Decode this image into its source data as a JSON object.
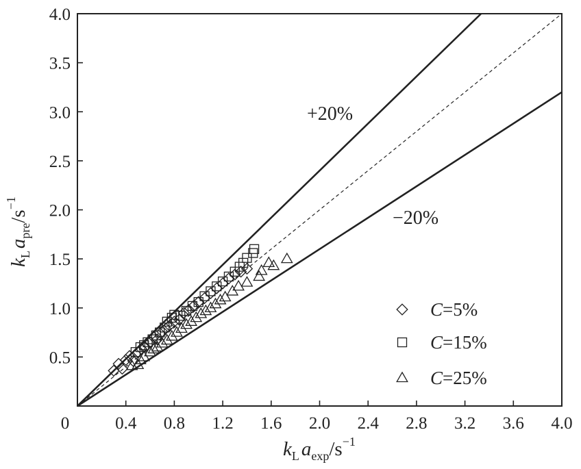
{
  "chart_data": {
    "type": "scatter",
    "x_axis": {
      "label_main": "k",
      "label_sub1": "L",
      "label_main2": "a",
      "label_sub2": "exp",
      "label_unit": "/s",
      "label_sup": "−1",
      "range": [
        0,
        4.0
      ],
      "ticks": [
        0,
        0.4,
        0.8,
        1.2,
        1.6,
        2.0,
        2.4,
        2.8,
        3.2,
        3.6,
        4.0
      ],
      "tick_labels": [
        "0",
        "0.4",
        "0.8",
        "1.2",
        "1.6",
        "2.0",
        "2.4",
        "2.8",
        "3.2",
        "3.6",
        "4.0"
      ]
    },
    "y_axis": {
      "label_main": "k",
      "label_sub1": "L",
      "label_main2": "a",
      "label_sub2": "pre",
      "label_unit": "/s",
      "label_sup": "−1",
      "range": [
        0,
        4.0
      ],
      "ticks": [
        0.5,
        1.0,
        1.5,
        2.0,
        2.5,
        3.0,
        3.5,
        4.0
      ],
      "tick_labels": [
        "0.5",
        "1.0",
        "1.5",
        "2.0",
        "2.5",
        "3.0",
        "3.5",
        "4.0"
      ]
    },
    "reference_lines": [
      {
        "label": "+20%",
        "slope": 1.2,
        "style": "solid"
      },
      {
        "label": "",
        "slope": 1.0,
        "style": "dashed"
      },
      {
        "label": "−20%",
        "slope": 0.8,
        "style": "solid"
      }
    ],
    "legend": {
      "placement": "bottom-right",
      "prefix": "C",
      "entries": [
        "=5%",
        "=15%",
        "=25%"
      ]
    },
    "series": [
      {
        "name": "C=5%",
        "marker": "diamond",
        "points": [
          [
            0.3,
            0.36
          ],
          [
            0.34,
            0.43
          ],
          [
            0.37,
            0.38
          ],
          [
            0.4,
            0.47
          ],
          [
            0.43,
            0.51
          ],
          [
            0.46,
            0.46
          ],
          [
            0.5,
            0.55
          ],
          [
            0.53,
            0.58
          ],
          [
            0.56,
            0.6
          ],
          [
            0.6,
            0.65
          ],
          [
            0.63,
            0.7
          ],
          [
            0.66,
            0.68
          ],
          [
            0.7,
            0.76
          ],
          [
            0.73,
            0.79
          ],
          [
            0.76,
            0.82
          ],
          [
            0.8,
            0.86
          ],
          [
            0.84,
            0.88
          ],
          [
            0.88,
            0.95
          ],
          [
            0.92,
            0.98
          ],
          [
            0.96,
            1.02
          ],
          [
            1.0,
            1.06
          ],
          [
            1.05,
            1.1
          ],
          [
            1.1,
            1.15
          ],
          [
            1.15,
            1.2
          ],
          [
            1.2,
            1.25
          ],
          [
            1.25,
            1.3
          ],
          [
            1.3,
            1.34
          ],
          [
            1.35,
            1.37
          ],
          [
            1.4,
            1.4
          ]
        ]
      },
      {
        "name": "C=15%",
        "marker": "square",
        "points": [
          [
            0.48,
            0.55
          ],
          [
            0.52,
            0.6
          ],
          [
            0.55,
            0.62
          ],
          [
            0.58,
            0.65
          ],
          [
            0.62,
            0.68
          ],
          [
            0.65,
            0.72
          ],
          [
            0.68,
            0.75
          ],
          [
            0.72,
            0.8
          ],
          [
            0.74,
            0.86
          ],
          [
            0.78,
            0.9
          ],
          [
            0.8,
            0.93
          ],
          [
            0.85,
            0.92
          ],
          [
            0.9,
            0.97
          ],
          [
            0.95,
            1.02
          ],
          [
            1.0,
            1.06
          ],
          [
            1.05,
            1.12
          ],
          [
            1.1,
            1.17
          ],
          [
            1.15,
            1.22
          ],
          [
            1.2,
            1.27
          ],
          [
            1.25,
            1.32
          ],
          [
            1.3,
            1.37
          ],
          [
            1.34,
            1.42
          ],
          [
            1.37,
            1.46
          ],
          [
            1.4,
            1.51
          ],
          [
            1.45,
            1.56
          ],
          [
            1.46,
            1.6
          ]
        ]
      },
      {
        "name": "C=25%",
        "marker": "triangle",
        "points": [
          [
            0.45,
            0.41
          ],
          [
            0.5,
            0.42
          ],
          [
            0.52,
            0.47
          ],
          [
            0.55,
            0.5
          ],
          [
            0.6,
            0.55
          ],
          [
            0.63,
            0.58
          ],
          [
            0.66,
            0.6
          ],
          [
            0.7,
            0.64
          ],
          [
            0.74,
            0.67
          ],
          [
            0.78,
            0.71
          ],
          [
            0.82,
            0.75
          ],
          [
            0.86,
            0.79
          ],
          [
            0.9,
            0.83
          ],
          [
            0.94,
            0.86
          ],
          [
            0.98,
            0.9
          ],
          [
            1.02,
            0.94
          ],
          [
            1.06,
            0.97
          ],
          [
            1.1,
            1.0
          ],
          [
            1.14,
            1.04
          ],
          [
            1.18,
            1.08
          ],
          [
            1.22,
            1.11
          ],
          [
            1.28,
            1.17
          ],
          [
            1.33,
            1.22
          ],
          [
            1.4,
            1.26
          ],
          [
            1.5,
            1.32
          ],
          [
            1.52,
            1.38
          ],
          [
            1.58,
            1.46
          ],
          [
            1.62,
            1.43
          ],
          [
            1.73,
            1.5
          ]
        ]
      }
    ]
  }
}
